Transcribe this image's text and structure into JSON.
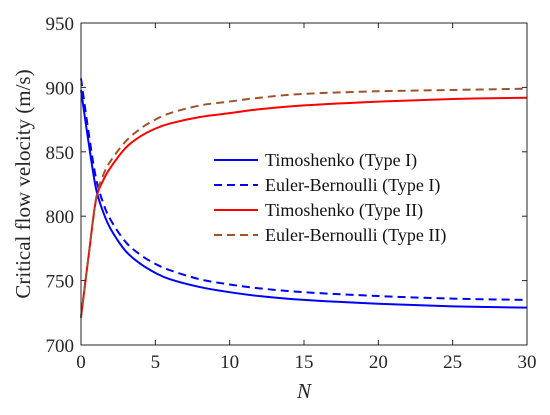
{
  "chart_data": {
    "type": "line",
    "title": "",
    "xlabel": "N",
    "ylabel": "Critical flow velocity (m/s)",
    "xlim": [
      0,
      30
    ],
    "ylim": [
      700,
      950
    ],
    "xticks": [
      0,
      5,
      10,
      15,
      20,
      25,
      30
    ],
    "yticks": [
      700,
      750,
      800,
      850,
      900,
      950
    ],
    "grid": false,
    "legend_position": "center-right",
    "x": [
      0,
      0.5,
      1,
      1.5,
      2,
      3,
      4,
      5,
      6,
      8,
      10,
      12,
      15,
      20,
      25,
      30
    ],
    "series": [
      {
        "name": "Timoshenko (Type I)",
        "color": "#0000ff",
        "style": "solid",
        "values": [
          898,
          858,
          822,
          803,
          790,
          773,
          763,
          756,
          751,
          745,
          741,
          738,
          735,
          732,
          730,
          729
        ]
      },
      {
        "name": "Euler-Bernoulli (Type I)",
        "color": "#0000ff",
        "style": "dashed",
        "values": [
          907,
          866,
          830,
          810,
          797,
          780,
          770,
          763,
          758,
          751,
          747,
          744,
          741,
          738,
          736,
          735
        ]
      },
      {
        "name": "Timoshenko (Type II)",
        "color": "#ff0000",
        "style": "solid",
        "values": [
          722,
          768,
          812,
          828,
          838,
          853,
          862,
          868,
          872,
          877,
          880,
          883,
          886,
          889,
          891,
          892
        ]
      },
      {
        "name": "Euler-Bernoulli (Type II)",
        "color": "#a0522d",
        "style": "dashed",
        "values": [
          721,
          768,
          813,
          832,
          843,
          858,
          868,
          875,
          880,
          886,
          889,
          892,
          895,
          897,
          898,
          899
        ]
      }
    ]
  }
}
